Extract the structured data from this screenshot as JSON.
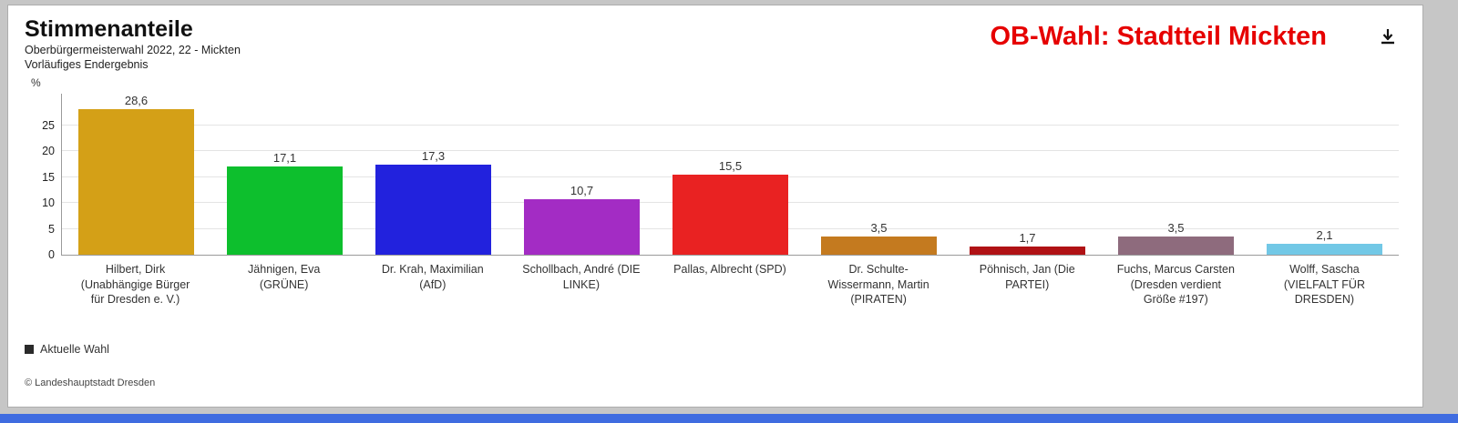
{
  "page": {
    "background_color": "#c6c6c6",
    "bottom_bar_color": "#3f6ce0"
  },
  "header": {
    "title": "Stimmenanteile",
    "subtitle_line1": "Oberbürgermeisterwahl 2022, 22 - Mickten",
    "subtitle_line2": "Vorläufiges Endergebnis",
    "banner": "OB-Wahl: Stadtteil Mickten",
    "banner_color": "#e60000",
    "download_icon": "download-icon"
  },
  "chart_data": {
    "type": "bar",
    "title": "Stimmenanteile",
    "subtitle": [
      "Oberbürgermeisterwahl 2022, 22 - Mickten",
      "Vorläufiges Endergebnis"
    ],
    "ylabel": "%",
    "xlabel": "",
    "ylim": [
      0,
      31
    ],
    "yticks": [
      0,
      5,
      10,
      15,
      20,
      25
    ],
    "grid": true,
    "legend_position": "bottom-left",
    "categories": [
      "Hilbert, Dirk (Unabhängige Bürger für Dresden e. V.)",
      "Jähnigen, Eva (GRÜNE)",
      "Dr. Krah, Maximilian (AfD)",
      "Schollbach, André (DIE LINKE)",
      "Pallas, Albrecht (SPD)",
      "Dr. Schulte-Wissermann, Martin (PIRATEN)",
      "Pöhnisch, Jan (Die PARTEI)",
      "Fuchs, Marcus Carsten (Dresden verdient Größe #197)",
      "Wolff, Sascha (VIELFALT FÜR DRESDEN)"
    ],
    "values": [
      28.6,
      17.1,
      17.3,
      10.7,
      15.5,
      3.5,
      1.7,
      3.5,
      2.1
    ],
    "value_labels": [
      "28,6",
      "17,1",
      "17,3",
      "10,7",
      "15,5",
      "3,5",
      "1,7",
      "3,5",
      "2,1"
    ],
    "bar_colors": [
      "#d4a017",
      "#0dbf2d",
      "#2222dd",
      "#a32cc4",
      "#e92222",
      "#c47a1f",
      "#b01215",
      "#8e6b7d",
      "#72c8e6"
    ]
  },
  "legend": {
    "label": "Aktuelle Wahl",
    "swatch_color": "#2a2a2a"
  },
  "footer": {
    "copyright": "© Landeshauptstadt Dresden"
  }
}
